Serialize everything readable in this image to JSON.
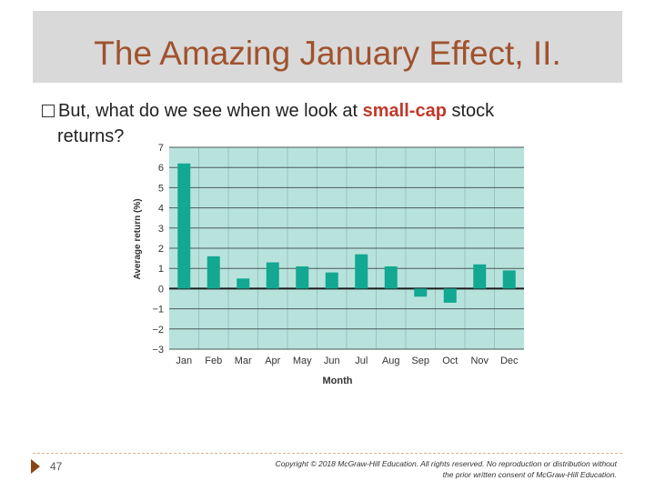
{
  "slide": {
    "title": "The Amazing January Effect, II.",
    "bullet_before": "But, what do we see when we look at ",
    "bullet_highlight": "small-cap",
    "bullet_after": " stock",
    "bullet_line2": "returns?",
    "page_number": "47",
    "copyright_line1": "Copyright © 2018 McGraw-Hill Education. All rights reserved. No reproduction or distribution without",
    "copyright_line2": "the prior written consent of McGraw-Hill Education."
  },
  "colors": {
    "plot_bg": "#b8e3dc",
    "bar": "#12a892",
    "title": "#a0522d",
    "highlight": "#c0392b"
  },
  "chart_data": {
    "type": "bar",
    "categories": [
      "Jan",
      "Feb",
      "Mar",
      "Apr",
      "May",
      "Jun",
      "Jul",
      "Aug",
      "Sep",
      "Oct",
      "Nov",
      "Dec"
    ],
    "values": [
      6.2,
      1.6,
      0.5,
      1.3,
      1.1,
      0.8,
      1.7,
      1.1,
      -0.4,
      -0.7,
      1.2,
      0.9
    ],
    "xlabel": "Month",
    "ylabel": "Average return (%)",
    "ylim": [
      -3,
      7
    ],
    "yticks": [
      "7",
      "6",
      "5",
      "4",
      "3",
      "2",
      "1",
      "0",
      "−1",
      "−2",
      "−3"
    ],
    "grid": true
  }
}
